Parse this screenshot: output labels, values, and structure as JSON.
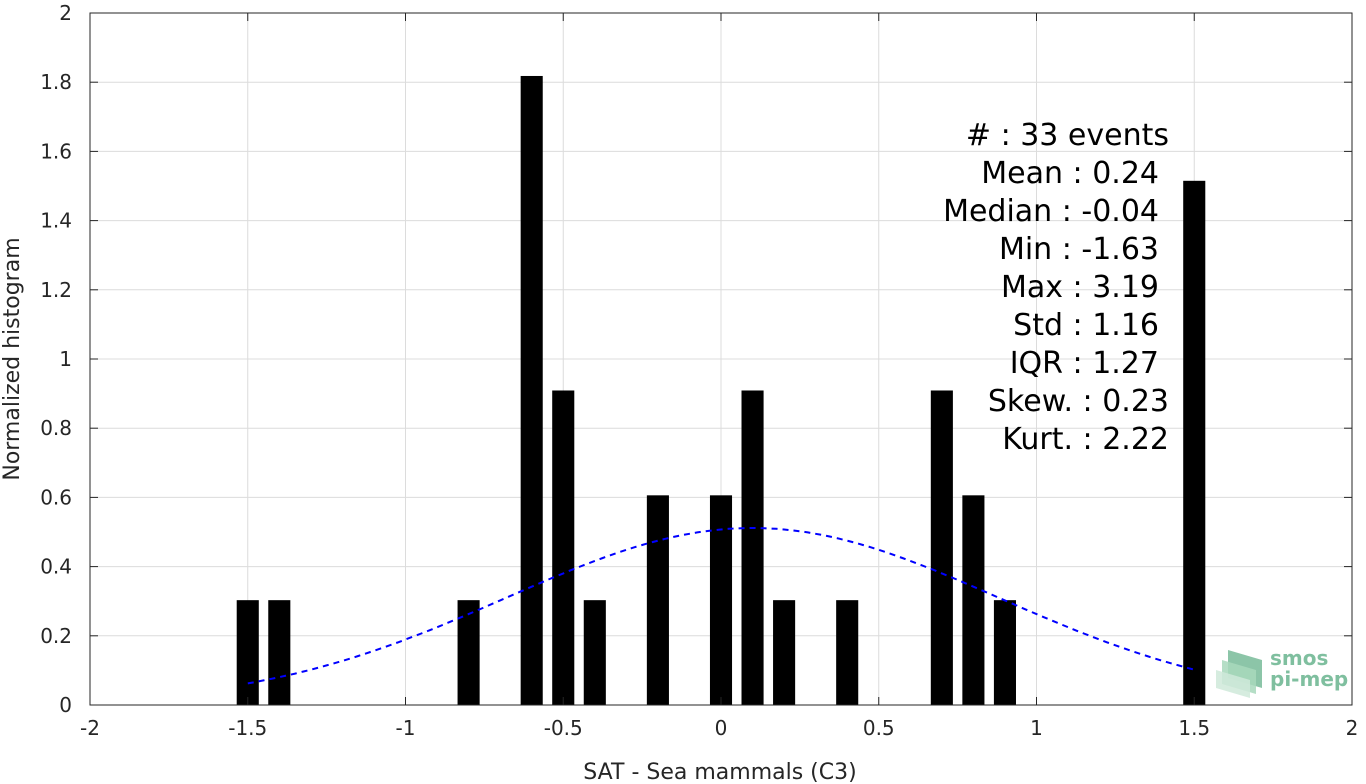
{
  "chart_data": {
    "type": "bar",
    "title": "",
    "xlabel": "SAT - Sea mammals (C3)",
    "ylabel": "Normalized histogram",
    "xlim": [
      -2,
      2
    ],
    "ylim": [
      0,
      2
    ],
    "grid": true,
    "x_ticks": [
      "-2",
      "-1.5",
      "-1",
      "-0.5",
      "0",
      "0.5",
      "1",
      "1.5",
      "2"
    ],
    "y_ticks": [
      "0",
      "0.2",
      "0.4",
      "0.6",
      "0.8",
      "1",
      "1.2",
      "1.4",
      "1.6",
      "1.8",
      "2"
    ],
    "bin_width": 0.07,
    "bars": [
      {
        "x": -1.5,
        "y": 0.303
      },
      {
        "x": -1.4,
        "y": 0.303
      },
      {
        "x": -0.8,
        "y": 0.303
      },
      {
        "x": -0.6,
        "y": 1.818
      },
      {
        "x": -0.5,
        "y": 0.909
      },
      {
        "x": -0.4,
        "y": 0.303
      },
      {
        "x": -0.2,
        "y": 0.606
      },
      {
        "x": 0.0,
        "y": 0.606
      },
      {
        "x": 0.1,
        "y": 0.909
      },
      {
        "x": 0.2,
        "y": 0.303
      },
      {
        "x": 0.4,
        "y": 0.303
      },
      {
        "x": 0.7,
        "y": 0.909
      },
      {
        "x": 0.8,
        "y": 0.606
      },
      {
        "x": 0.9,
        "y": 0.303
      },
      {
        "x": 1.5,
        "y": 1.515
      }
    ],
    "fit_curve": {
      "style": "dashed",
      "color": "#0000ff",
      "mean": 0.1,
      "std": 0.78,
      "x_range": [
        -1.5,
        1.5
      ]
    },
    "bar_color": "#000000",
    "stats": [
      "#  : 33 events",
      "Mean : 0.24",
      "Median : -0.04",
      "Min : -1.63",
      "Max : 3.19",
      "Std : 1.16",
      "IQR : 1.27",
      "Skew. : 0.23",
      "Kurt. : 2.22"
    ]
  },
  "logo": {
    "line1": "smos",
    "line2": "pi-mep",
    "color": "#7fbf9f"
  }
}
